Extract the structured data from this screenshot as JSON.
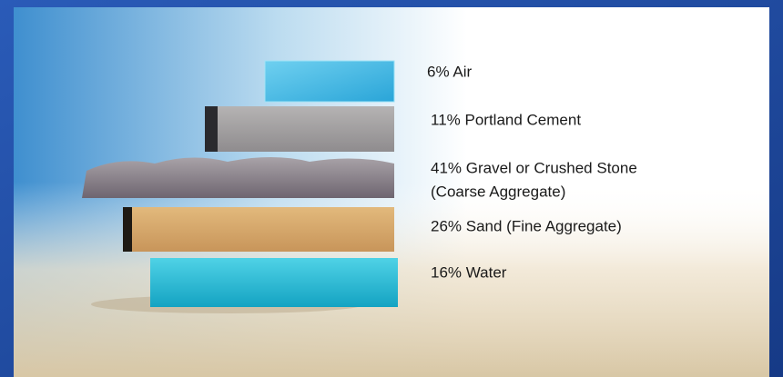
{
  "items": [
    {
      "lines": [
        "6% Air"
      ]
    },
    {
      "lines": [
        "11% Portland Cement"
      ]
    },
    {
      "lines": [
        "41% Gravel or Crushed Stone",
        "(Coarse Aggregate)"
      ]
    },
    {
      "lines": [
        "26% Sand (Fine Aggregate)"
      ]
    },
    {
      "lines": [
        "16% Water"
      ]
    }
  ]
}
